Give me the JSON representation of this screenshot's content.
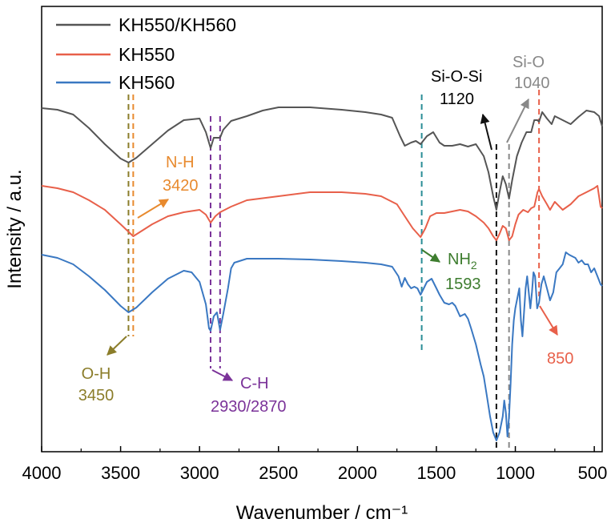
{
  "chart_data": {
    "type": "line",
    "title": "",
    "xlabel": "Wavenumber / cm⁻¹",
    "ylabel": "Intensity / a.u.",
    "xlim": [
      4000,
      450
    ],
    "x_reversed": true,
    "x_ticks": [
      "4000",
      "3500",
      "3000",
      "2500",
      "2000",
      "1500",
      "1000",
      "500"
    ],
    "x_tick_values": [
      4000,
      3500,
      3000,
      2500,
      2000,
      1500,
      1000,
      500
    ],
    "y_ticks_shown": false,
    "grid": false,
    "legend": {
      "placement": "top-left"
    },
    "series": [
      {
        "name": "KH550/KH560",
        "color": "#555555",
        "points": [
          [
            4000,
            135
          ],
          [
            3900,
            137
          ],
          [
            3800,
            143
          ],
          [
            3700,
            160
          ],
          [
            3600,
            180
          ],
          [
            3500,
            198
          ],
          [
            3450,
            203
          ],
          [
            3400,
            197
          ],
          [
            3300,
            180
          ],
          [
            3200,
            163
          ],
          [
            3100,
            150
          ],
          [
            3000,
            148
          ],
          [
            2960,
            165
          ],
          [
            2930,
            185
          ],
          [
            2910,
            172
          ],
          [
            2870,
            172
          ],
          [
            2850,
            162
          ],
          [
            2800,
            151
          ],
          [
            2700,
            145
          ],
          [
            2600,
            138
          ],
          [
            2500,
            134
          ],
          [
            2300,
            134
          ],
          [
            2100,
            137
          ],
          [
            1950,
            140
          ],
          [
            1850,
            143
          ],
          [
            1780,
            147
          ],
          [
            1730,
            170
          ],
          [
            1700,
            182
          ],
          [
            1660,
            178
          ],
          [
            1630,
            176
          ],
          [
            1600,
            180
          ],
          [
            1560,
            170
          ],
          [
            1520,
            165
          ],
          [
            1480,
            178
          ],
          [
            1450,
            182
          ],
          [
            1400,
            182
          ],
          [
            1350,
            180
          ],
          [
            1300,
            183
          ],
          [
            1250,
            180
          ],
          [
            1200,
            195
          ],
          [
            1170,
            215
          ],
          [
            1140,
            245
          ],
          [
            1120,
            262
          ],
          [
            1100,
            240
          ],
          [
            1080,
            220
          ],
          [
            1060,
            230
          ],
          [
            1040,
            248
          ],
          [
            1020,
            225
          ],
          [
            990,
            195
          ],
          [
            960,
            178
          ],
          [
            930,
            165
          ],
          [
            900,
            165
          ],
          [
            880,
            150
          ],
          [
            860,
            150
          ],
          [
            850,
            152
          ],
          [
            830,
            140
          ],
          [
            800,
            148
          ],
          [
            770,
            155
          ],
          [
            750,
            145
          ],
          [
            700,
            150
          ],
          [
            650,
            155
          ],
          [
            600,
            146
          ],
          [
            550,
            138
          ],
          [
            500,
            140
          ],
          [
            470,
            145
          ],
          [
            450,
            158
          ]
        ]
      },
      {
        "name": "KH550",
        "color": "#e8604a",
        "points": [
          [
            4000,
            232
          ],
          [
            3900,
            235
          ],
          [
            3800,
            240
          ],
          [
            3700,
            250
          ],
          [
            3600,
            262
          ],
          [
            3500,
            280
          ],
          [
            3420,
            295
          ],
          [
            3380,
            290
          ],
          [
            3300,
            280
          ],
          [
            3200,
            270
          ],
          [
            3100,
            265
          ],
          [
            3000,
            262
          ],
          [
            2960,
            268
          ],
          [
            2930,
            278
          ],
          [
            2900,
            270
          ],
          [
            2870,
            265
          ],
          [
            2800,
            258
          ],
          [
            2700,
            250
          ],
          [
            2500,
            245
          ],
          [
            2300,
            240
          ],
          [
            2100,
            240
          ],
          [
            1950,
            242
          ],
          [
            1850,
            245
          ],
          [
            1750,
            255
          ],
          [
            1700,
            270
          ],
          [
            1650,
            285
          ],
          [
            1600,
            296
          ],
          [
            1570,
            285
          ],
          [
            1540,
            270
          ],
          [
            1500,
            266
          ],
          [
            1450,
            266
          ],
          [
            1400,
            264
          ],
          [
            1350,
            262
          ],
          [
            1300,
            264
          ],
          [
            1250,
            270
          ],
          [
            1200,
            278
          ],
          [
            1170,
            285
          ],
          [
            1140,
            295
          ],
          [
            1120,
            300
          ],
          [
            1100,
            292
          ],
          [
            1080,
            282
          ],
          [
            1060,
            285
          ],
          [
            1040,
            300
          ],
          [
            1020,
            295
          ],
          [
            1000,
            280
          ],
          [
            980,
            268
          ],
          [
            950,
            262
          ],
          [
            920,
            265
          ],
          [
            900,
            260
          ],
          [
            880,
            258
          ],
          [
            860,
            240
          ],
          [
            850,
            236
          ],
          [
            830,
            245
          ],
          [
            800,
            255
          ],
          [
            780,
            262
          ],
          [
            750,
            252
          ],
          [
            700,
            262
          ],
          [
            650,
            255
          ],
          [
            600,
            245
          ],
          [
            550,
            240
          ],
          [
            500,
            235
          ],
          [
            480,
            232
          ],
          [
            460,
            258
          ],
          [
            450,
            260
          ]
        ]
      },
      {
        "name": "KH560",
        "color": "#3a78c2",
        "points": [
          [
            4000,
            318
          ],
          [
            3900,
            322
          ],
          [
            3800,
            330
          ],
          [
            3700,
            345
          ],
          [
            3600,
            362
          ],
          [
            3500,
            382
          ],
          [
            3450,
            390
          ],
          [
            3400,
            384
          ],
          [
            3300,
            365
          ],
          [
            3200,
            348
          ],
          [
            3100,
            338
          ],
          [
            3050,
            340
          ],
          [
            3000,
            352
          ],
          [
            2960,
            380
          ],
          [
            2940,
            410
          ],
          [
            2930,
            413
          ],
          [
            2910,
            395
          ],
          [
            2890,
            390
          ],
          [
            2870,
            412
          ],
          [
            2850,
            392
          ],
          [
            2820,
            360
          ],
          [
            2800,
            335
          ],
          [
            2780,
            328
          ],
          [
            2700,
            323
          ],
          [
            2500,
            323
          ],
          [
            2300,
            324
          ],
          [
            2100,
            326
          ],
          [
            1950,
            328
          ],
          [
            1850,
            330
          ],
          [
            1780,
            333
          ],
          [
            1740,
            345
          ],
          [
            1720,
            358
          ],
          [
            1700,
            347
          ],
          [
            1680,
            355
          ],
          [
            1660,
            360
          ],
          [
            1640,
            358
          ],
          [
            1620,
            360
          ],
          [
            1600,
            368
          ],
          [
            1580,
            360
          ],
          [
            1560,
            352
          ],
          [
            1530,
            348
          ],
          [
            1500,
            360
          ],
          [
            1480,
            368
          ],
          [
            1450,
            378
          ],
          [
            1420,
            380
          ],
          [
            1400,
            378
          ],
          [
            1380,
            382
          ],
          [
            1350,
            395
          ],
          [
            1320,
            392
          ],
          [
            1300,
            398
          ],
          [
            1280,
            410
          ],
          [
            1250,
            430
          ],
          [
            1220,
            455
          ],
          [
            1200,
            470
          ],
          [
            1180,
            495
          ],
          [
            1160,
            520
          ],
          [
            1140,
            540
          ],
          [
            1120,
            550
          ],
          [
            1100,
            540
          ],
          [
            1080,
            520
          ],
          [
            1070,
            500
          ],
          [
            1060,
            515
          ],
          [
            1050,
            545
          ],
          [
            1040,
            520
          ],
          [
            1030,
            480
          ],
          [
            1020,
            430
          ],
          [
            1010,
            400
          ],
          [
            1000,
            385
          ],
          [
            990,
            375
          ],
          [
            975,
            360
          ],
          [
            965,
            400
          ],
          [
            955,
            420
          ],
          [
            945,
            390
          ],
          [
            935,
            360
          ],
          [
            925,
            345
          ],
          [
            915,
            365
          ],
          [
            905,
            385
          ],
          [
            895,
            365
          ],
          [
            885,
            340
          ],
          [
            875,
            345
          ],
          [
            862,
            385
          ],
          [
            850,
            378
          ],
          [
            835,
            355
          ],
          [
            820,
            345
          ],
          [
            800,
            360
          ],
          [
            780,
            375
          ],
          [
            760,
            365
          ],
          [
            740,
            340
          ],
          [
            720,
            335
          ],
          [
            700,
            330
          ],
          [
            680,
            315
          ],
          [
            660,
            318
          ],
          [
            640,
            320
          ],
          [
            620,
            322
          ],
          [
            600,
            328
          ],
          [
            580,
            325
          ],
          [
            560,
            330
          ],
          [
            540,
            330
          ],
          [
            520,
            340
          ],
          [
            500,
            335
          ],
          [
            480,
            345
          ],
          [
            460,
            355
          ],
          [
            450,
            357
          ]
        ]
      }
    ],
    "reference_lines": [
      {
        "x": 3450,
        "color": "#8b7d2a",
        "from": 118,
        "to": 420
      },
      {
        "x": 3420,
        "color": "#e88a2e",
        "from": 118,
        "to": 420
      },
      {
        "x": 2930,
        "color": "#7b3399",
        "from": 145,
        "to": 460
      },
      {
        "x": 2870,
        "color": "#7b3399",
        "from": 145,
        "to": 460
      },
      {
        "x": 1593,
        "color": "#2a8d96",
        "from": 118,
        "to": 437
      },
      {
        "x": 1120,
        "color": "#111111",
        "from": 180,
        "to": 560
      },
      {
        "x": 1040,
        "color": "#888888",
        "from": 180,
        "to": 560
      },
      {
        "x": 850,
        "color": "#e8604a",
        "from": 112,
        "to": 370
      }
    ],
    "annotations": [
      {
        "label": "N-H",
        "value": "3420",
        "color": "#e88a2e"
      },
      {
        "label": "O-H",
        "value": "3450",
        "color": "#8b7d2a"
      },
      {
        "label": "C-H",
        "value": "2930/2870",
        "color": "#7b3399"
      },
      {
        "label": "NH2",
        "value": "1593",
        "color": "#3e7d2f"
      },
      {
        "label": "Si-O-Si",
        "value": "1120",
        "color": "#000000"
      },
      {
        "label": "Si-O",
        "value": "1040",
        "color": "#888888"
      },
      {
        "label": "",
        "value": "850",
        "color": "#e8604a"
      }
    ]
  }
}
